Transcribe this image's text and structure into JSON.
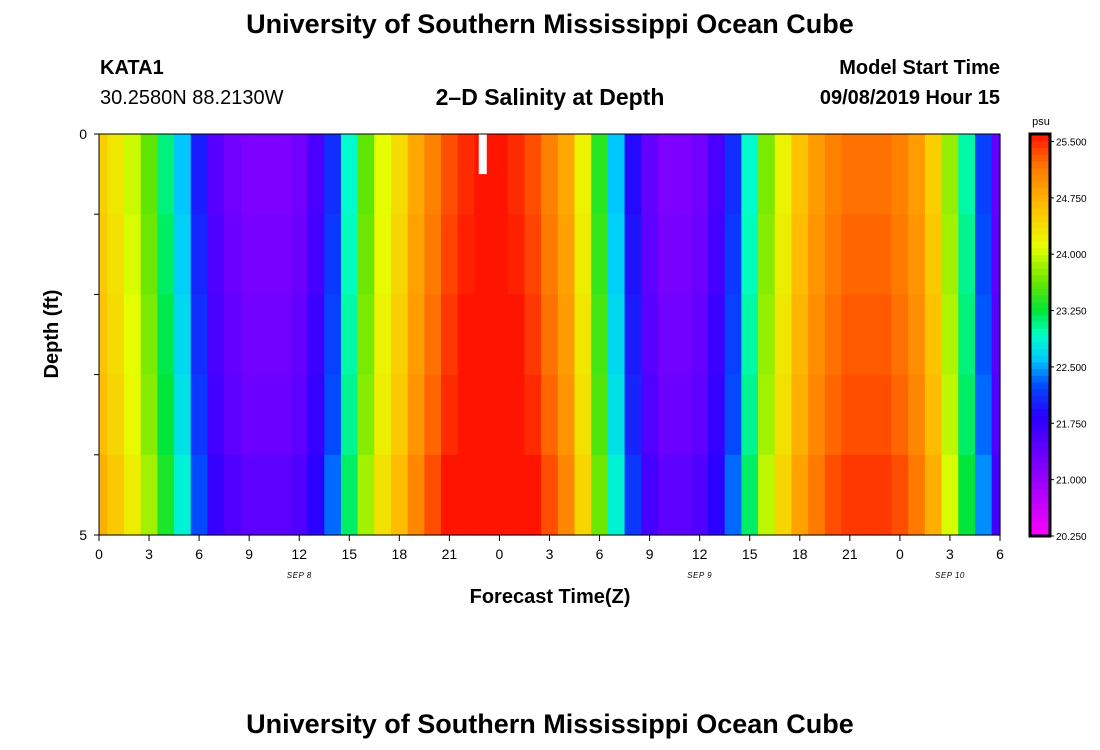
{
  "header": {
    "title": "University of Southern Mississippi Ocean Cube",
    "station": "KATA1",
    "coords": "30.2580N 88.2130W",
    "subtitle": "2–D Salinity at Depth",
    "model_label": "Model Start Time",
    "model_time": "09/08/2019 Hour 15"
  },
  "footer": {
    "title": "University of Southern Mississippi Ocean Cube"
  },
  "chart_data": {
    "type": "heatmap",
    "title": "2–D Salinity at Depth",
    "xlabel": "Forecast Time(Z)",
    "ylabel": "Depth (ft)",
    "x_tick_labels": [
      "0",
      "3",
      "6",
      "9",
      "12",
      "15",
      "18",
      "21",
      "0",
      "3",
      "6",
      "9",
      "12",
      "15",
      "18",
      "21",
      "0",
      "3",
      "6"
    ],
    "x_hours": [
      0,
      3,
      6,
      9,
      12,
      15,
      18,
      21,
      24,
      27,
      30,
      33,
      36,
      39,
      42,
      45,
      48,
      51,
      54
    ],
    "date_labels": [
      {
        "text": "SEP 8",
        "hour": 12
      },
      {
        "text": "SEP 9",
        "hour": 36
      },
      {
        "text": "SEP 10",
        "hour": 51
      }
    ],
    "y_tick_labels": [
      "0",
      "5"
    ],
    "ylim": [
      0,
      5
    ],
    "xlim": [
      0,
      54
    ],
    "colorbar": {
      "unit": "psu",
      "min": 20.25,
      "max": 25.6,
      "tick_labels": [
        "25.500",
        "24.750",
        "24.000",
        "23.250",
        "22.500",
        "21.750",
        "21.000",
        "20.250"
      ],
      "tick_values": [
        25.5,
        24.75,
        24.0,
        23.25,
        22.5,
        21.75,
        21.0,
        20.25
      ]
    },
    "depth_levels_ft": [
      0,
      1,
      2,
      3,
      4,
      5
    ],
    "time_step_hours": 1,
    "salinity_surface_psu": [
      24.5,
      24.3,
      24.0,
      23.6,
      23.1,
      22.6,
      22.0,
      21.5,
      21.3,
      21.2,
      21.2,
      21.2,
      21.3,
      21.6,
      22.1,
      22.9,
      23.6,
      24.1,
      24.4,
      24.8,
      25.1,
      25.35,
      25.5,
      25.6,
      25.6,
      25.5,
      25.35,
      25.1,
      24.8,
      24.2,
      23.4,
      22.6,
      21.9,
      21.4,
      21.2,
      21.2,
      21.3,
      21.6,
      22.1,
      22.9,
      23.7,
      24.2,
      24.6,
      24.9,
      25.1,
      25.2,
      25.2,
      25.2,
      25.1,
      24.9,
      24.5,
      23.8,
      23.0,
      22.2,
      21.4
    ],
    "depth_adjust_psu": [
      0,
      0.05,
      0.1,
      0.15,
      0.25
    ],
    "missing": [
      {
        "hour": 23,
        "depth_range_ft": [
          0,
          0.5
        ]
      }
    ]
  }
}
